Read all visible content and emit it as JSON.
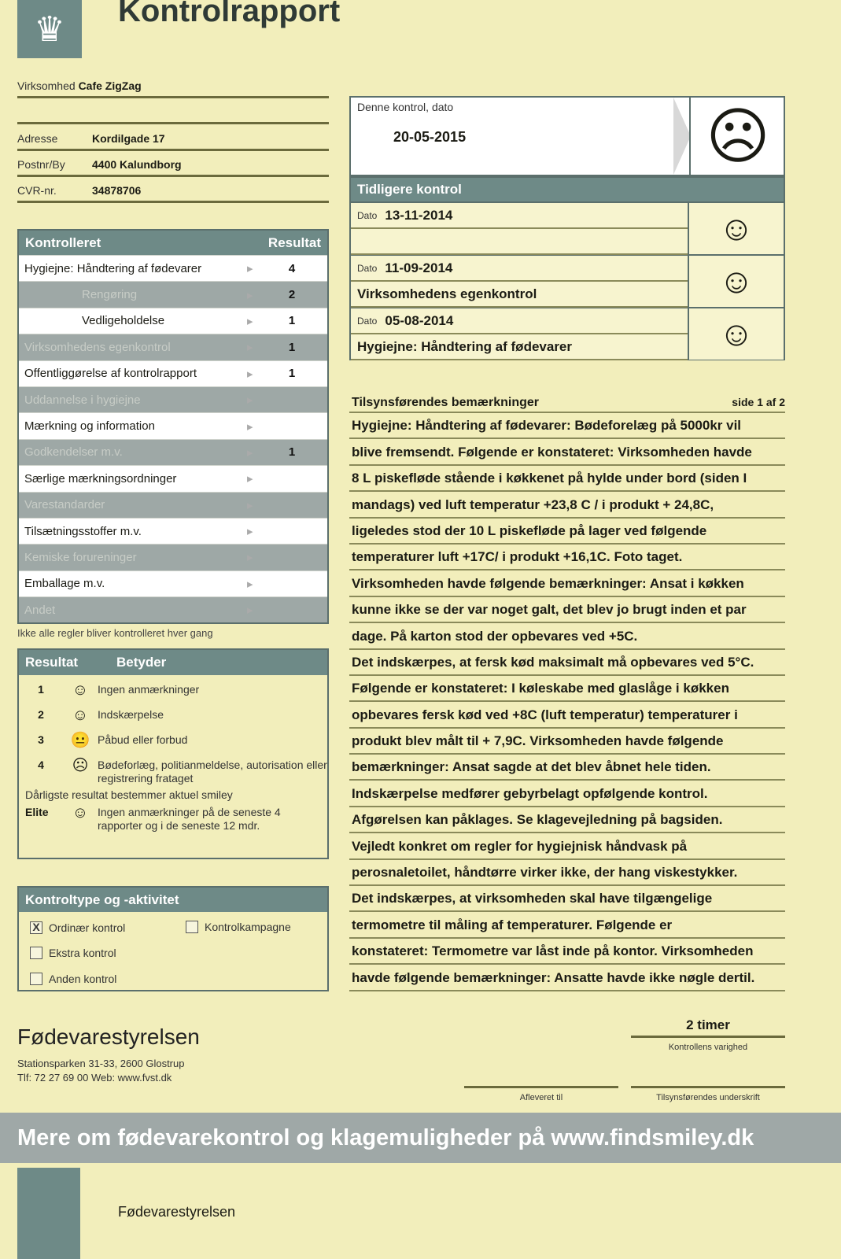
{
  "header": {
    "title": "Kontrolrapport",
    "logo_icon": "crown-icon"
  },
  "business": {
    "name_label": "Virksomhed",
    "name": "Cafe ZigZag",
    "address_label": "Adresse",
    "address": "Kordilgade 17",
    "postal_label": "Postnr/By",
    "postal": "4400  Kalundborg",
    "cvr_label": "CVR-nr.",
    "cvr": "34878706"
  },
  "controlled": {
    "header_label": "Kontrolleret",
    "header_result": "Resultat",
    "rows": [
      {
        "name": "Hygiejne: Håndtering af fødevarer",
        "result": "4"
      },
      {
        "name": "Rengøring",
        "result": "2"
      },
      {
        "name": "Vedligeholdelse",
        "result": "1"
      },
      {
        "name": "Virksomhedens egenkontrol",
        "result": "1"
      },
      {
        "name": "Offentliggørelse af kontrolrapport",
        "result": "1"
      },
      {
        "name": "Uddannelse i hygiejne",
        "result": ""
      },
      {
        "name": "Mærkning og information",
        "result": ""
      },
      {
        "name": "Godkendelser m.v.",
        "result": "1"
      },
      {
        "name": "Særlige mærkningsordninger",
        "result": ""
      },
      {
        "name": "Varestandarder",
        "result": ""
      },
      {
        "name": "Tilsætningsstoffer m.v.",
        "result": ""
      },
      {
        "name": "Kemiske forureninger",
        "result": ""
      },
      {
        "name": "Emballage m.v.",
        "result": ""
      },
      {
        "name": "Andet",
        "result": ""
      }
    ],
    "note": "Ikke alle regler bliver kontrolleret hver gang"
  },
  "legend": {
    "header_result": "Resultat",
    "header_meaning": "Betyder",
    "rows": [
      {
        "num": "1",
        "icon": "☺",
        "text": "Ingen anmærkninger"
      },
      {
        "num": "2",
        "icon": "☺",
        "text": "Indskærpelse"
      },
      {
        "num": "3",
        "icon": "😐",
        "text": "Påbud eller forbud"
      },
      {
        "num": "4",
        "icon": "☹",
        "text": "Bødeforlæg, politianmeldelse, autorisation eller registrering frataget"
      }
    ],
    "worst_note": "Dårligste resultat bestemmer aktuel smiley",
    "elite": {
      "num": "Elite",
      "icon": "☺",
      "text": "Ingen anmærkninger på de seneste 4 rapporter og i de seneste 12 mdr."
    }
  },
  "control_type": {
    "header": "Kontroltype og -aktivitet",
    "options": [
      {
        "label": "Ordinær kontrol",
        "checked": "X"
      },
      {
        "label": "Kontrolkampagne",
        "checked": ""
      },
      {
        "label": "Ekstra kontrol",
        "checked": ""
      },
      {
        "label": "Anden kontrol",
        "checked": ""
      }
    ]
  },
  "current": {
    "label": "Denne kontrol, dato",
    "date": "20-05-2015",
    "smiley": "☹"
  },
  "previous": {
    "header": "Tidligere kontrol",
    "date_label": "Dato",
    "rows": [
      {
        "date": "13-11-2014",
        "note": "",
        "smiley": "☺"
      },
      {
        "date": "11-09-2014",
        "note": "Virksomhedens egenkontrol",
        "smiley": "☺"
      },
      {
        "date": "05-08-2014",
        "note": "Hygiejne: Håndtering af fødevarer",
        "smiley": "☺"
      }
    ]
  },
  "remarks": {
    "title": "Tilsynsførendes bemærkninger",
    "page": "side 1 af 2",
    "lines": [
      "Hygiejne: Håndtering af fødevarer: Bødeforelæg på 5000kr vil",
      "blive fremsendt. Følgende er konstateret: Virksomheden havde",
      "8 L piskefløde stående i køkkenet på hylde under bord (siden I",
      "mandags) ved luft temperatur +23,8 C / i produkt + 24,8C,",
      "ligeledes stod der 10 L piskefløde på lager ved følgende",
      "temperaturer luft +17C/ i produkt +16,1C. Foto taget.",
      "Virksomheden havde følgende bemærkninger: Ansat i køkken",
      "kunne ikke se der var noget galt, det blev jo brugt inden et par",
      "dage. På karton stod der opbevares ved +5C.",
      "Det indskærpes, at fersk kød maksimalt må opbevares ved 5°C.",
      "Følgende er konstateret: I køleskabe med glaslåge i køkken",
      "opbevares fersk kød ved +8C (luft temperatur) temperaturer i",
      "produkt blev målt til + 7,9C. Virksomheden havde følgende",
      "bemærkninger: Ansat sagde at det blev åbnet hele tiden.",
      "Indskærpelse medfører gebyrbelagt opfølgende kontrol.",
      "Afgørelsen kan påklages. Se klagevejledning på bagsiden.",
      "Vejledt konkret om regler for hygiejnisk håndvask på",
      "perosnaletoilet, håndtørre virker ikke, der hang viskestykker.",
      "Det indskærpes, at virksomheden skal have tilgængelige",
      "termometre til måling af temperaturer. Følgende er",
      "konstateret: Termometre var låst inde på kontor. Virksomheden",
      "havde følgende bemærkninger: Ansatte havde ikke nøgle dertil."
    ]
  },
  "footer": {
    "agency": "Fødevarestyrelsen",
    "address": "Stationsparken 31-33, 2600 Glostrup",
    "contact": "Tlf: 72 27 69 00    Web: www.fvst.dk",
    "duration": "2 timer",
    "duration_label": "Kontrollens varighed",
    "delivered_label": "Afleveret til",
    "signature_label": "Tilsynsførendes underskrift",
    "banner": "Mere om fødevarekontrol og klagemuligheder på www.findsmiley.dk",
    "next_page_agency": "Fødevarestyrelsen"
  }
}
